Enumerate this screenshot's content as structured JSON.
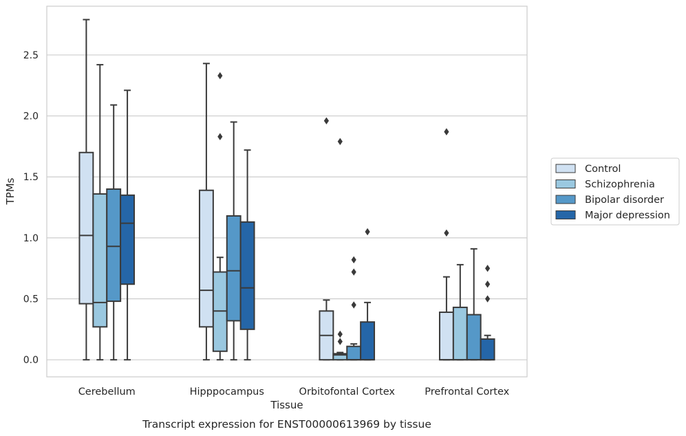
{
  "chart_data": {
    "type": "box",
    "xlabel": "Tissue",
    "ylabel": "TPMs",
    "caption": "Transcript expression for ENST00000613969 by tissue",
    "ylim": [
      -0.14,
      2.9
    ],
    "yticks": [
      0.0,
      0.5,
      1.0,
      1.5,
      2.0,
      2.5
    ],
    "ytick_labels": [
      "0.0",
      "0.5",
      "1.0",
      "1.5",
      "2.0",
      "2.5"
    ],
    "categories": [
      "Cerebellum",
      "Hipppocampus",
      "Orbitofontal Cortex",
      "Prefrontal Cortex"
    ],
    "grid": "horizontal",
    "legend_position": "right",
    "series": [
      {
        "name": "Control",
        "color": "#d0e1f2",
        "boxes": [
          {
            "whislo": 0.0,
            "q1": 0.46,
            "med": 1.02,
            "q3": 1.7,
            "whishi": 2.79,
            "fliers": []
          },
          {
            "whislo": 0.0,
            "q1": 0.27,
            "med": 0.57,
            "q3": 1.39,
            "whishi": 2.43,
            "fliers": []
          },
          {
            "whislo": 0.0,
            "q1": 0.0,
            "med": 0.2,
            "q3": 0.4,
            "whishi": 0.49,
            "fliers": [
              1.96
            ]
          },
          {
            "whislo": 0.0,
            "q1": 0.0,
            "med": 0.0,
            "q3": 0.39,
            "whishi": 0.68,
            "fliers": [
              1.04,
              1.87
            ]
          }
        ]
      },
      {
        "name": "Schizophrenia",
        "color": "#9ac8e0",
        "boxes": [
          {
            "whislo": 0.0,
            "q1": 0.27,
            "med": 0.47,
            "q3": 1.36,
            "whishi": 2.42,
            "fliers": []
          },
          {
            "whislo": 0.0,
            "q1": 0.07,
            "med": 0.4,
            "q3": 0.72,
            "whishi": 0.84,
            "fliers": [
              1.83,
              2.33
            ]
          },
          {
            "whislo": 0.0,
            "q1": 0.0,
            "med": 0.04,
            "q3": 0.05,
            "whishi": 0.06,
            "fliers": [
              0.15,
              0.21,
              1.79
            ]
          },
          {
            "whislo": 0.0,
            "q1": 0.0,
            "med": 0.0,
            "q3": 0.43,
            "whishi": 0.78,
            "fliers": []
          }
        ]
      },
      {
        "name": "Bipolar disorder",
        "color": "#5598c8",
        "boxes": [
          {
            "whislo": 0.0,
            "q1": 0.48,
            "med": 0.93,
            "q3": 1.4,
            "whishi": 2.09,
            "fliers": []
          },
          {
            "whislo": 0.0,
            "q1": 0.32,
            "med": 0.73,
            "q3": 1.18,
            "whishi": 1.95,
            "fliers": []
          },
          {
            "whislo": 0.0,
            "q1": 0.0,
            "med": 0.0,
            "q3": 0.11,
            "whishi": 0.13,
            "fliers": [
              0.45,
              0.72,
              0.82
            ]
          },
          {
            "whislo": 0.0,
            "q1": 0.0,
            "med": 0.0,
            "q3": 0.37,
            "whishi": 0.91,
            "fliers": []
          }
        ]
      },
      {
        "name": "Major depression",
        "color": "#2566a8",
        "boxes": [
          {
            "whislo": 0.0,
            "q1": 0.62,
            "med": 1.12,
            "q3": 1.35,
            "whishi": 2.21,
            "fliers": []
          },
          {
            "whislo": 0.0,
            "q1": 0.25,
            "med": 0.59,
            "q3": 1.13,
            "whishi": 1.72,
            "fliers": []
          },
          {
            "whislo": 0.0,
            "q1": 0.0,
            "med": 0.0,
            "q3": 0.31,
            "whishi": 0.47,
            "fliers": [
              1.05
            ]
          },
          {
            "whislo": 0.0,
            "q1": 0.0,
            "med": 0.0,
            "q3": 0.17,
            "whishi": 0.2,
            "fliers": [
              0.5,
              0.62,
              0.75
            ]
          }
        ]
      }
    ]
  }
}
